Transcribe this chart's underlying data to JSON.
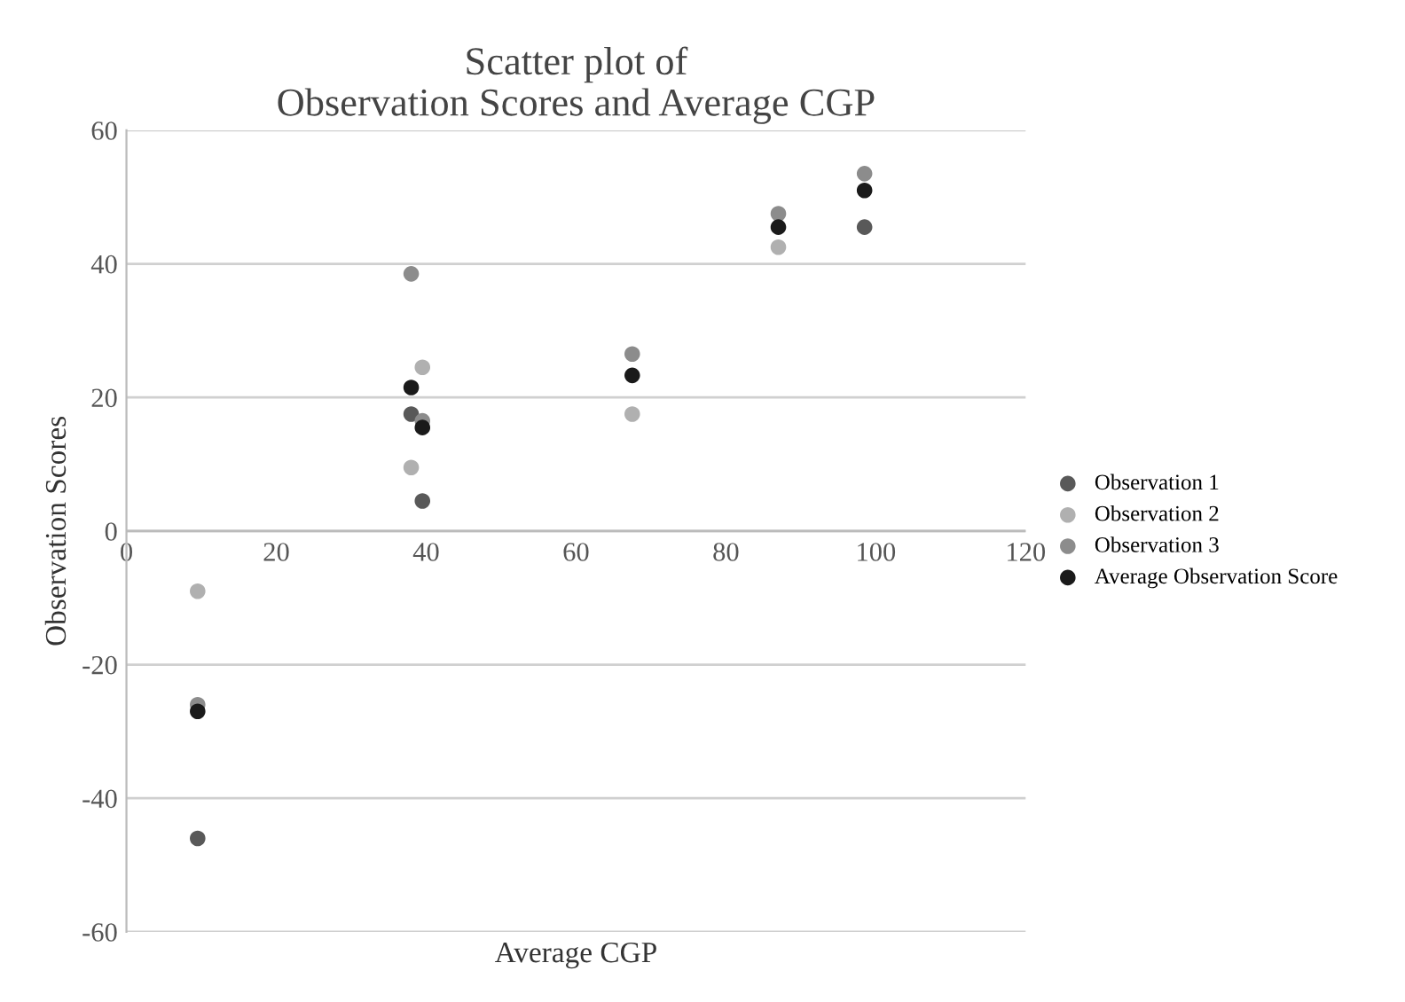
{
  "chart_data": {
    "type": "scatter",
    "title": "Scatter plot of\nObservation Scores and Average CGP",
    "xlabel": "Average CGP",
    "ylabel": "Observation Scores",
    "x": [
      9.5,
      38,
      39.5,
      67.5,
      87,
      98.5
    ],
    "series": [
      {
        "name": "Observation 1",
        "color": "#595959",
        "values": [
          -46,
          17.5,
          4.5,
          null,
          null,
          45.5
        ]
      },
      {
        "name": "Observation 2",
        "color": "#b0b0b0",
        "values": [
          -9,
          9.5,
          24.5,
          17.5,
          42.5,
          null
        ]
      },
      {
        "name": "Observation 3",
        "color": "#8c8c8c",
        "values": [
          -26,
          38.5,
          16.5,
          26.5,
          47.5,
          53.5
        ]
      },
      {
        "name": "Average Observation Score",
        "color": "#1a1a1a",
        "values": [
          -27,
          21.5,
          15.5,
          23.3,
          45.5,
          51
        ]
      }
    ],
    "xlim": [
      0,
      120
    ],
    "xticks": [
      0,
      20,
      40,
      60,
      80,
      100,
      120
    ],
    "ylim": [
      -60,
      60
    ],
    "yticks": [
      -60,
      -40,
      -20,
      0,
      20,
      40,
      60
    ],
    "grid": "y",
    "legend": "right",
    "marker": "circle"
  }
}
